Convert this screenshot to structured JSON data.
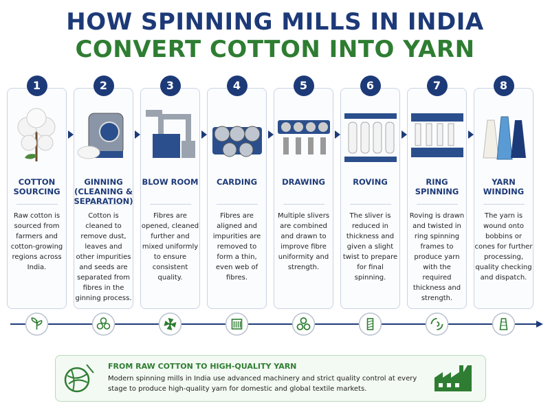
{
  "header": {
    "title_line1": "HOW SPINNING MILLS IN INDIA",
    "title_line2": "CONVERT COTTON INTO YARN"
  },
  "steps": [
    {
      "number": "1",
      "title": "COTTON SOURCING",
      "description": "Raw cotton is sourced from farmers and cotton-growing regions across India."
    },
    {
      "number": "2",
      "title": "GINNING (CLEANING & SEPARATION)",
      "description": "Cotton is cleaned to remove dust, leaves and other impurities and seeds are separated from fibres in the ginning process."
    },
    {
      "number": "3",
      "title": "BLOW ROOM",
      "description": "Fibres are opened, cleaned further and mixed uniformly to ensure consistent quality."
    },
    {
      "number": "4",
      "title": "CARDING",
      "description": "Fibres are aligned and impurities are removed to form a thin, even web of fibres."
    },
    {
      "number": "5",
      "title": "DRAWING",
      "description": "Multiple slivers are combined and drawn to improve fibre uniformity and strength."
    },
    {
      "number": "6",
      "title": "ROVING",
      "description": "The sliver is reduced in thickness and given a slight twist to prepare for final spinning."
    },
    {
      "number": "7",
      "title": "RING SPINNING",
      "description": "Roving is drawn and twisted in ring spinning frames to produce yarn with the required thickness and strength."
    },
    {
      "number": "8",
      "title": "YARN WINDING",
      "description": "The yarn is wound onto bobbins or cones for further processing, quality checking and dispatch."
    }
  ],
  "footer": {
    "title": "FROM RAW COTTON TO HIGH-QUALITY YARN",
    "text": "Modern spinning mills in India use advanced machinery and strict quality control at every stage to produce high-quality yarn for domestic and global textile markets."
  }
}
